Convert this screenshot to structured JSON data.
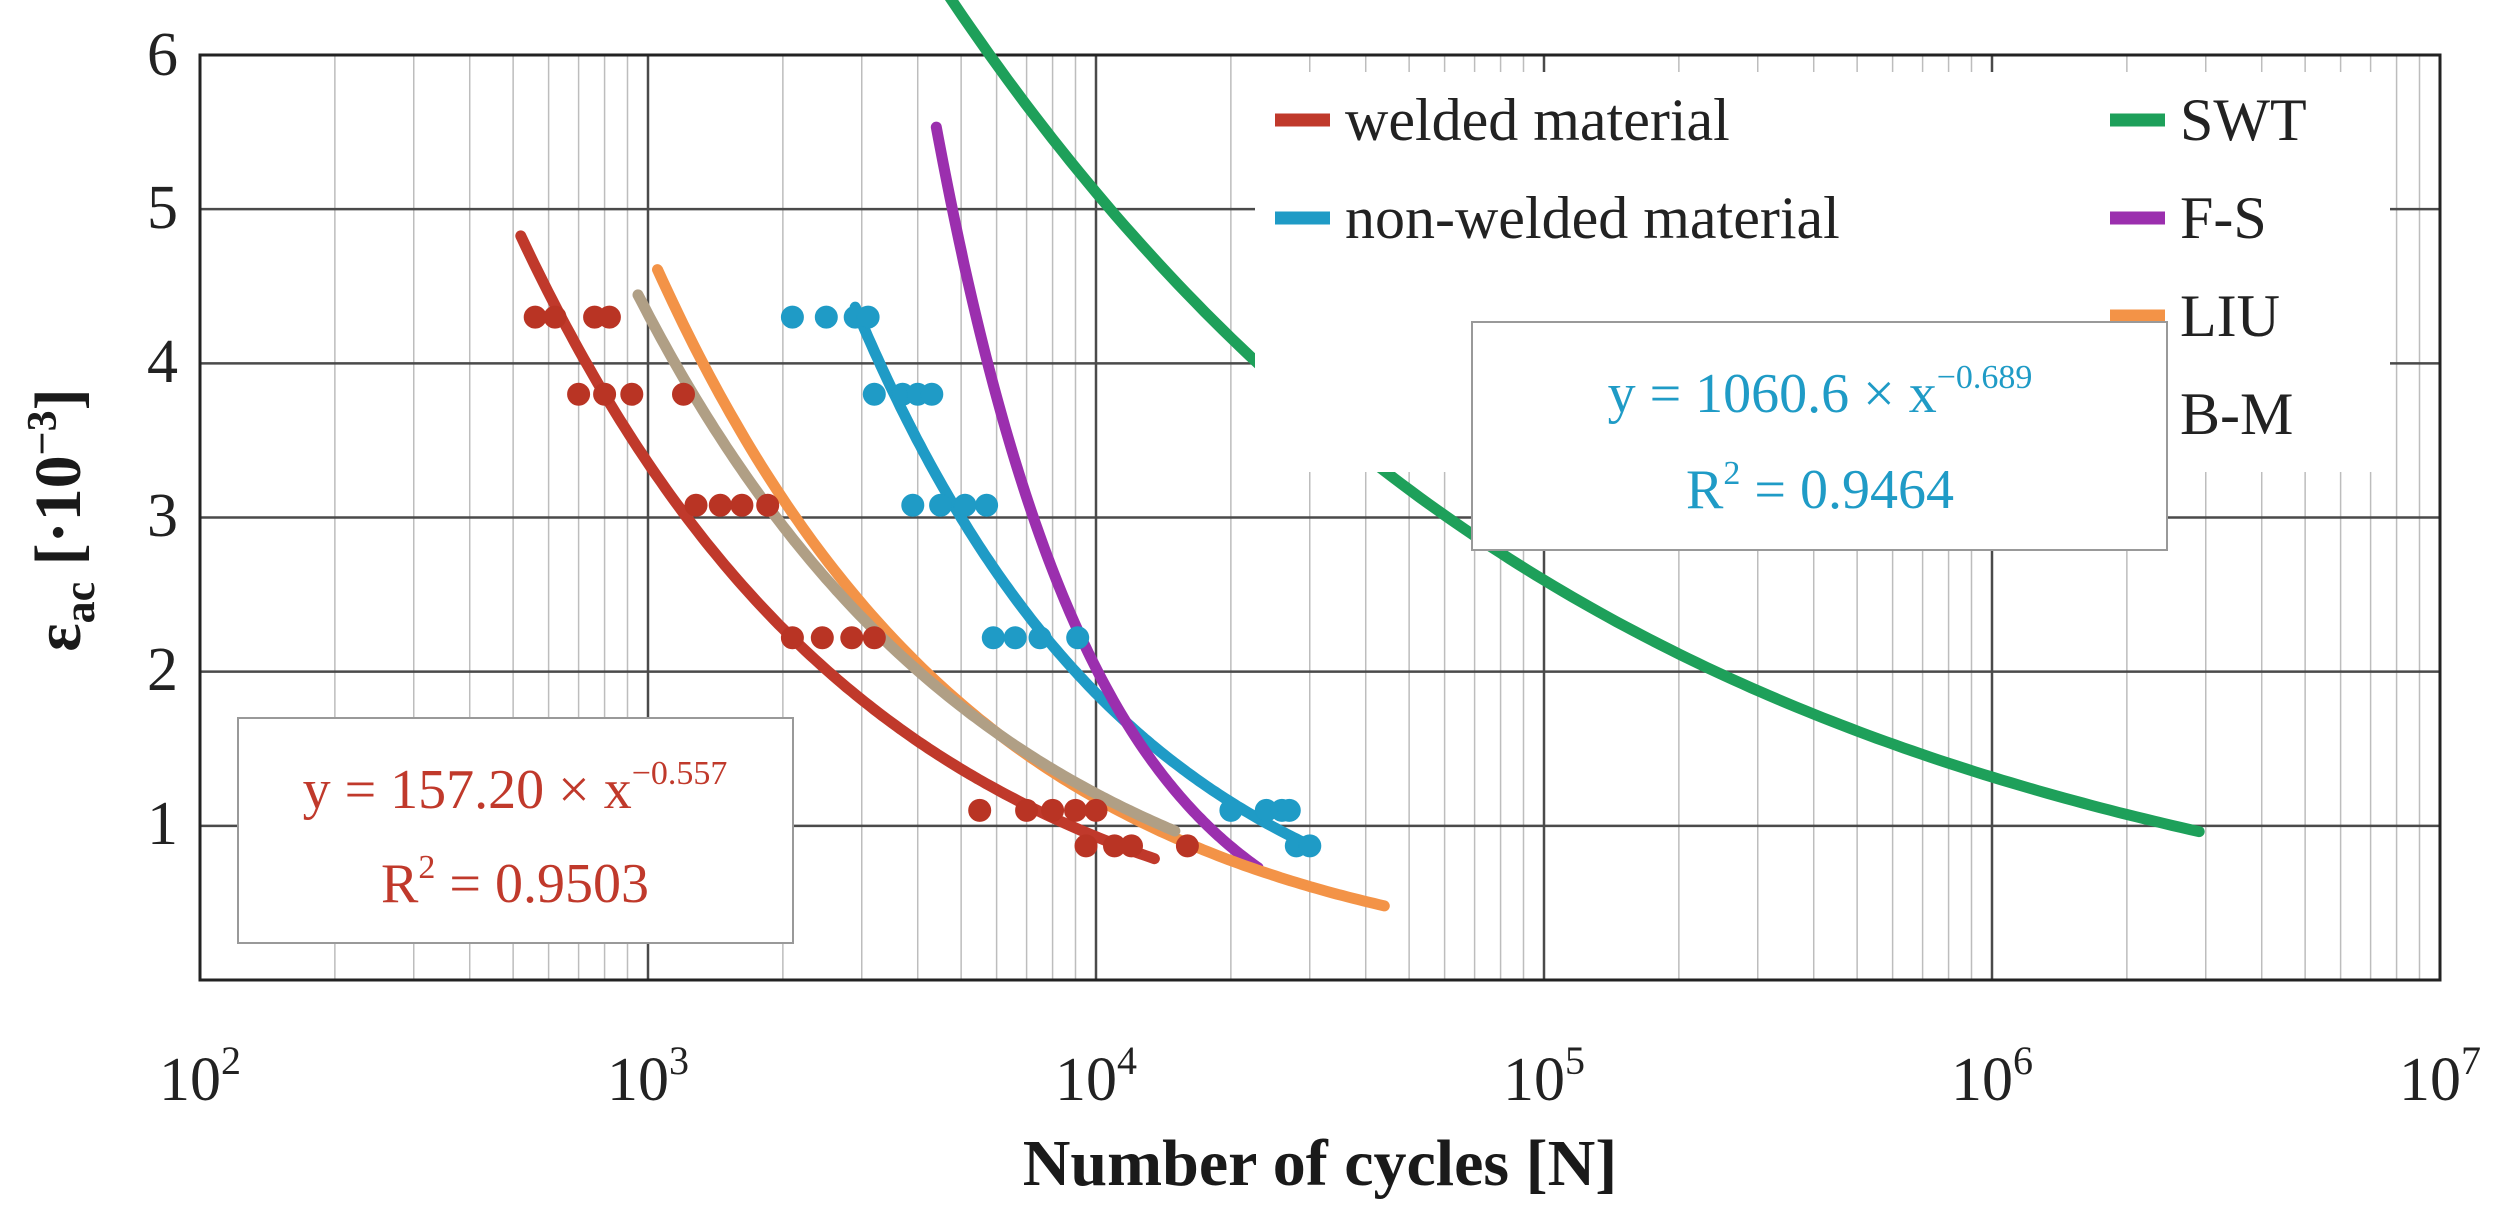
{
  "chart_data": {
    "type": "scatter",
    "xscale": "log",
    "xlim": [
      100,
      10000000
    ],
    "ylim": [
      0,
      6
    ],
    "xlabel": "Number of cycles [N]",
    "ylabel": {
      "base": "ε",
      "sub": "ac",
      "unit": " [·10",
      "unit_exp": "−3",
      "unit_close": "]"
    },
    "x_ticks": [
      {
        "base": "10",
        "exp": "2",
        "value": 100
      },
      {
        "base": "10",
        "exp": "3",
        "value": 1000
      },
      {
        "base": "10",
        "exp": "4",
        "value": 10000
      },
      {
        "base": "10",
        "exp": "5",
        "value": 100000
      },
      {
        "base": "10",
        "exp": "6",
        "value": 1000000
      },
      {
        "base": "10",
        "exp": "7",
        "value": 10000000
      }
    ],
    "y_ticks": [
      "1",
      "2",
      "3",
      "4",
      "5",
      "6"
    ],
    "y_tick_values": [
      1,
      2,
      3,
      4,
      5,
      6
    ],
    "grid": true,
    "legend_position": "top-right",
    "legend": [
      {
        "key": "welded",
        "label": "welded material",
        "color": "#c0392b"
      },
      {
        "key": "nonwelded",
        "label": "non-welded material",
        "color": "#1f9bc6"
      },
      {
        "key": "swt",
        "label": "SWT",
        "color": "#1ea05a"
      },
      {
        "key": "fs",
        "label": "F-S",
        "color": "#9b2fae"
      },
      {
        "key": "liu",
        "label": "LIU",
        "color": "#f39347"
      },
      {
        "key": "bm",
        "label": "B-M",
        "color": "#b09f85"
      }
    ],
    "series": [
      {
        "name": "welded material",
        "kind": "points",
        "color": "#b93424",
        "points": [
          [
            560,
            4.3
          ],
          [
            620,
            4.3
          ],
          [
            760,
            4.3
          ],
          [
            820,
            4.3
          ],
          [
            700,
            3.8
          ],
          [
            800,
            3.8
          ],
          [
            920,
            3.8
          ],
          [
            1200,
            3.8
          ],
          [
            1280,
            3.08
          ],
          [
            1450,
            3.08
          ],
          [
            1620,
            3.08
          ],
          [
            1850,
            3.08
          ],
          [
            2100,
            2.22
          ],
          [
            2450,
            2.22
          ],
          [
            2850,
            2.22
          ],
          [
            3200,
            2.22
          ],
          [
            5500,
            1.1
          ],
          [
            7000,
            1.1
          ],
          [
            8000,
            1.1
          ],
          [
            9000,
            1.1
          ],
          [
            10000,
            1.1
          ],
          [
            9500,
            0.87
          ],
          [
            11000,
            0.87
          ],
          [
            12000,
            0.87
          ],
          [
            16000,
            0.87
          ]
        ]
      },
      {
        "name": "non-welded material",
        "kind": "points",
        "color": "#1f9bc6",
        "points": [
          [
            2100,
            4.3
          ],
          [
            2500,
            4.3
          ],
          [
            2900,
            4.3
          ],
          [
            3100,
            4.3
          ],
          [
            3200,
            3.8
          ],
          [
            3700,
            3.8
          ],
          [
            4000,
            3.8
          ],
          [
            4300,
            3.8
          ],
          [
            3900,
            3.08
          ],
          [
            4500,
            3.08
          ],
          [
            5100,
            3.08
          ],
          [
            5700,
            3.08
          ],
          [
            5900,
            2.22
          ],
          [
            6600,
            2.22
          ],
          [
            7500,
            2.22
          ],
          [
            9100,
            2.22
          ],
          [
            20000,
            1.1
          ],
          [
            24000,
            1.1
          ],
          [
            26000,
            1.1
          ],
          [
            27000,
            1.1
          ],
          [
            28000,
            0.87
          ],
          [
            30000,
            0.87
          ]
        ]
      },
      {
        "name": "welded material fit",
        "kind": "curve",
        "color": "#c0392b",
        "a": 157.2,
        "b": -0.557,
        "xrange": [
          520,
          13500
        ]
      },
      {
        "name": "non-welded material fit",
        "kind": "curve",
        "color": "#1f9bc6",
        "a": 1060.6,
        "b": -0.689,
        "xrange": [
          2900,
          30000
        ]
      },
      {
        "name": "SWT",
        "kind": "curve",
        "color": "#1ea05a",
        "a": 76.9,
        "b": -0.2944,
        "xrange": [
          4600,
          2900000
        ]
      },
      {
        "name": "F-S",
        "kind": "curve",
        "color": "#9b2fae",
        "a": 162100,
        "b": -1.226,
        "xrange": [
          4400,
          23000
        ]
      },
      {
        "name": "LIU",
        "kind": "curve",
        "color": "#f39347",
        "a": 310,
        "b": -0.605,
        "xrange": [
          1050,
          44000
        ]
      },
      {
        "name": "B-M",
        "kind": "curve",
        "color": "#b09f85",
        "a": 197,
        "b": -0.553,
        "xrange": [
          950,
          15000
        ]
      }
    ],
    "annotations": {
      "welded": {
        "line1": "y = 157.20 × x",
        "exp1": "−0.557",
        "line2": "R",
        "exp2": "2",
        "line2_rest": " = 0.9503",
        "color": "#c0392b"
      },
      "nonwelded": {
        "line1": "y = 1060.6 × x",
        "exp1": "−0.689",
        "line2": "R",
        "exp2": "2",
        "line2_rest": " = 0.9464",
        "color": "#1f9bc6"
      }
    }
  }
}
